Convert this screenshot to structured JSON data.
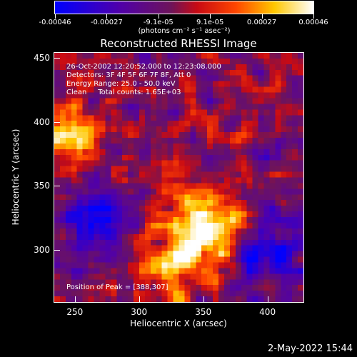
{
  "colorbar": {
    "labels": [
      "-0.00046",
      "-0.00027",
      "-9.1e-05",
      "9.1e-05",
      "0.00027",
      "0.00046"
    ],
    "unit": "(photons cm⁻² s⁻¹ asec⁻²)",
    "range": [
      -0.00046,
      0.00046
    ]
  },
  "title": "Reconstructed RHESSI Image",
  "info": {
    "time": "26-Oct-2002 12:20:52.000 to 12:23:08.000",
    "detectors": "Detectors: 3F 4F 5F 6F 7F 8F, Att 0",
    "energy": "Energy Range: 25.0 - 50.0 keV",
    "clean": "Clean     Total counts: 1.65E+03",
    "peak": "Position of Peak = [388,307]"
  },
  "footer": "2-May-2022 15:44",
  "chart_data": {
    "type": "heatmap",
    "title": "Reconstructed RHESSI Image",
    "xlabel": "Heliocentric X (arcsec)",
    "ylabel": "Heliocentric Y (arcsec)",
    "xlim": [
      234,
      428
    ],
    "ylim": [
      259,
      454
    ],
    "x_ticks": [
      "250",
      "300",
      "350",
      "400"
    ],
    "y_ticks": [
      "300",
      "350",
      "400",
      "450"
    ],
    "colormap": "blue-purple-red-yellow-white",
    "colorscale_range": [
      -0.00046,
      0.00046
    ],
    "peak_position": [
      388,
      307
    ],
    "features": [
      {
        "name": "main-bright-region",
        "x": 355,
        "y": 320,
        "level": 0.95
      },
      {
        "name": "secondary-bright-region",
        "x": 330,
        "y": 295,
        "level": 0.85
      },
      {
        "name": "upper-left-bright-region",
        "x": 245,
        "y": 390,
        "level": 0.8
      },
      {
        "name": "lower-left-dark-region",
        "x": 270,
        "y": 320,
        "level": -0.7
      },
      {
        "name": "right-dark-spot",
        "x": 400,
        "y": 300,
        "level": -0.8
      }
    ]
  }
}
